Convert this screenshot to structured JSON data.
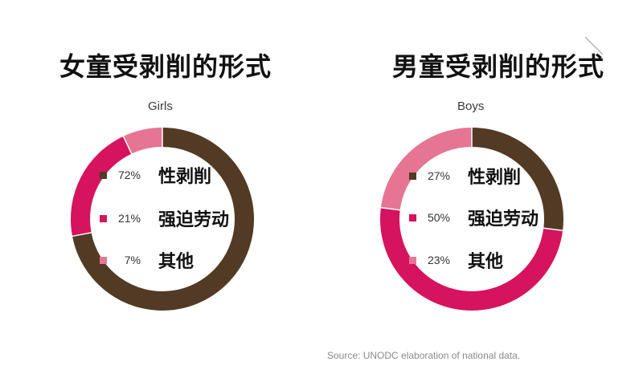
{
  "source_note": "Source: UNODC elaboration of national data.",
  "chart_data": [
    {
      "type": "pie",
      "variant": "donut",
      "title": "女童受剥削的形式",
      "label": "Girls",
      "series": [
        {
          "name": "性剥削",
          "value": 72,
          "display": "72%",
          "color": "#523a24"
        },
        {
          "name": "强迫劳动",
          "value": 21,
          "display": "21%",
          "color": "#d6135e"
        },
        {
          "name": "其他",
          "value": 7,
          "display": "7%",
          "color": "#e57593"
        }
      ],
      "legend_placement": "center"
    },
    {
      "type": "pie",
      "variant": "donut",
      "title": "男童受剥削的形式",
      "label": "Boys",
      "series": [
        {
          "name": "性剥削",
          "value": 27,
          "display": "27%",
          "color": "#523a24"
        },
        {
          "name": "强迫劳动",
          "value": 50,
          "display": "50%",
          "color": "#d6135e"
        },
        {
          "name": "其他",
          "value": 23,
          "display": "23%",
          "color": "#e57593"
        }
      ],
      "legend_placement": "center"
    }
  ]
}
